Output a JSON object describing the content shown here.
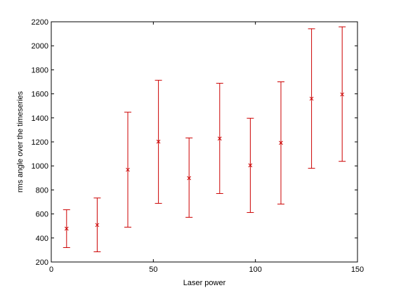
{
  "chart_data": {
    "type": "scatter",
    "title": "",
    "xlabel": "Laser power",
    "ylabel": "rms angle over the timeseries",
    "xlim": [
      0,
      150
    ],
    "ylim": [
      200,
      2200
    ],
    "xticks": [
      0,
      50,
      100,
      150
    ],
    "yticks": [
      200,
      400,
      600,
      800,
      1000,
      1200,
      1400,
      1600,
      1800,
      2000,
      2200
    ],
    "grid": false,
    "legend": "none",
    "marker": "x",
    "color": "#cc0000",
    "series": [
      {
        "x": [
          7.5,
          22.5,
          37.5,
          52.5,
          67.5,
          82.5,
          97.5,
          112.5,
          127.5,
          142.5
        ],
        "y": [
          478,
          508,
          968,
          1202,
          898,
          1228,
          1005,
          1192,
          1560,
          1595
        ],
        "err_low": [
          320,
          285,
          490,
          688,
          572,
          770,
          612,
          682,
          980,
          1038
        ],
        "err_high": [
          635,
          733,
          1447,
          1713,
          1233,
          1688,
          1397,
          1700,
          2142,
          2158
        ]
      }
    ]
  }
}
